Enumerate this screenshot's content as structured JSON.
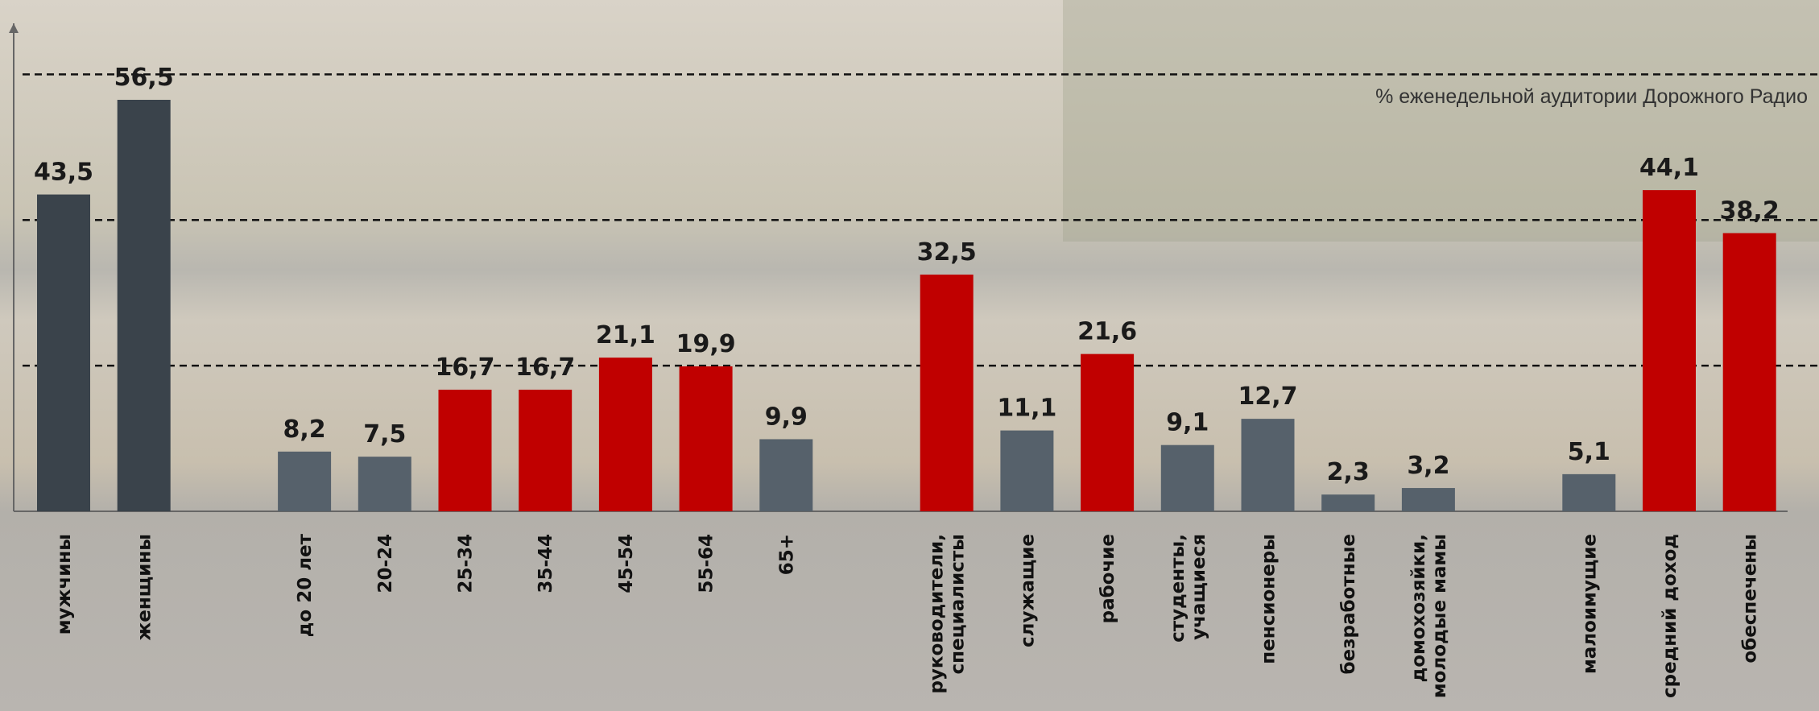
{
  "chart_data": {
    "type": "bar",
    "annotation": "% еженедельной аудитории Дорожного Радио",
    "categories": [
      "мужчины",
      "женщины",
      null,
      "до 20 лет",
      "20-24",
      "25-34",
      "35-44",
      "45-54",
      "55-64",
      "65+",
      null,
      "руководители, специалисты",
      "служащие",
      "рабочие",
      "студенты, учащиеся",
      "пенсионеры",
      "безработные",
      "домохозяйки, молодые мамы",
      null,
      "малоимущие",
      "средний доход",
      "обеспечены"
    ],
    "values": [
      43.5,
      56.5,
      null,
      8.2,
      7.5,
      16.7,
      16.7,
      21.1,
      19.9,
      9.9,
      null,
      32.5,
      11.1,
      21.6,
      9.1,
      12.7,
      2.3,
      3.2,
      null,
      5.1,
      44.1,
      38.2
    ],
    "value_labels": [
      "43,5",
      "56,5",
      null,
      "8,2",
      "7,5",
      "16,7",
      "16,7",
      "21,1",
      "19,9",
      "9,9",
      null,
      "32,5",
      "11,1",
      "21,6",
      "9,1",
      "12,7",
      "2,3",
      "3,2",
      null,
      "5,1",
      "44,1",
      "38,2"
    ],
    "colors": [
      "#3a434b",
      "#3a434b",
      null,
      "#56616b",
      "#56616b",
      "#c00000",
      "#c00000",
      "#c00000",
      "#c00000",
      "#56616b",
      null,
      "#c00000",
      "#56616b",
      "#c00000",
      "#56616b",
      "#56616b",
      "#56616b",
      "#56616b",
      null,
      "#56616b",
      "#c00000",
      "#c00000"
    ],
    "ylim": [
      0,
      67
    ],
    "yticks": [
      20,
      40,
      60
    ],
    "grid": true
  }
}
